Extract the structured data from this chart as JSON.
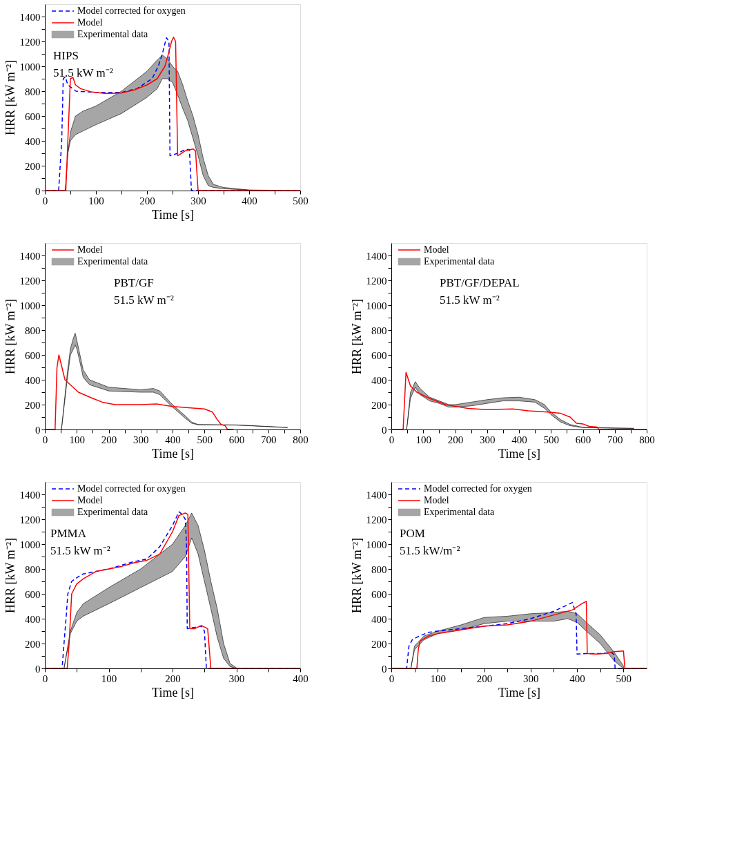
{
  "chart_data": [
    {
      "type": "line",
      "xlabel": "Time [s]",
      "ylabel": "HRR [kW m⁻²]",
      "annotations": [
        "HIPS",
        "51.5 kW m⁻²"
      ],
      "legend": "top left",
      "grid": false,
      "xlim": [
        0,
        500
      ],
      "xticks": [
        0,
        {
          "value": 50,
          "label": null
        },
        100,
        {
          "value": 150,
          "label": null
        },
        200,
        {
          "value": 250,
          "label": null
        },
        300,
        {
          "value": 350,
          "label": null
        },
        400,
        {
          "value": 450,
          "label": null
        },
        500
      ],
      "ylim": [
        0,
        1500
      ],
      "yticks": [
        0,
        {
          "value": 100,
          "label": null
        },
        200,
        {
          "value": 300,
          "label": null
        },
        400,
        {
          "value": 500,
          "label": null
        },
        600,
        {
          "value": 700,
          "label": null
        },
        800,
        {
          "value": 900,
          "label": null
        },
        1000,
        {
          "value": 1100,
          "label": null
        },
        1200,
        {
          "value": 1300,
          "label": null
        },
        1400
      ],
      "series": [
        {
          "name": "Model corrected for oxygen",
          "type": "line",
          "color": "#0000ff",
          "line_style": "dashed",
          "x": [
            0,
            27,
            33,
            36,
            40,
            45,
            61,
            100,
            150,
            180,
            210,
            222,
            230,
            238,
            243,
            245,
            260,
            275,
            283,
            287,
            500
          ],
          "values": [
            0,
            0,
            400,
            900,
            915,
            850,
            800,
            790,
            790,
            820,
            900,
            1000,
            1100,
            1230,
            1200,
            280,
            300,
            330,
            330,
            0,
            0
          ]
        },
        {
          "name": "Model",
          "type": "line",
          "color": "#ff0000",
          "line_style": "solid",
          "x": [
            0,
            41,
            50,
            55,
            60,
            70,
            90,
            120,
            150,
            175,
            200,
            220,
            235,
            242,
            248,
            252,
            256,
            260,
            275,
            290,
            295,
            300,
            500
          ],
          "values": [
            0,
            0,
            900,
            910,
            850,
            820,
            795,
            780,
            785,
            810,
            850,
            900,
            1000,
            1100,
            1200,
            1235,
            1200,
            280,
            320,
            335,
            320,
            0,
            0
          ]
        },
        {
          "name": "Experimental data",
          "values": [
            null,
            null,
            null,
            null,
            null,
            null,
            null,
            null,
            null,
            null,
            null,
            null,
            null,
            null,
            null,
            null,
            null,
            null,
            null,
            null,
            null,
            null,
            null
          ],
          "type": "area",
          "color": "#000000",
          "x": [
            40,
            45,
            50,
            60,
            75,
            100,
            150,
            200,
            220,
            230,
            240,
            250,
            260,
            270,
            280,
            290,
            300,
            310,
            320,
            330,
            350,
            400,
            460
          ],
          "lower": [
            0,
            300,
            400,
            450,
            480,
            530,
            620,
            750,
            820,
            900,
            900,
            870,
            770,
            660,
            560,
            420,
            280,
            120,
            40,
            25,
            15,
            3,
            0
          ],
          "upper": [
            0,
            300,
            470,
            600,
            640,
            680,
            800,
            960,
            1050,
            1090,
            1060,
            1000,
            960,
            850,
            720,
            600,
            450,
            260,
            120,
            50,
            25,
            5,
            2
          ]
        }
      ]
    },
    {
      "type": "line",
      "xlabel": "Time [s]",
      "ylabel": "HRR [kW m⁻²]",
      "annotations": [
        "PBT/GF",
        "51.5 kW m⁻²"
      ],
      "legend": "top left",
      "grid": false,
      "xlim": [
        0,
        800
      ],
      "xticks": [
        0,
        {
          "value": 50,
          "label": null
        },
        100,
        {
          "value": 150,
          "label": null
        },
        200,
        {
          "value": 250,
          "label": null
        },
        300,
        {
          "value": 350,
          "label": null
        },
        400,
        {
          "value": 450,
          "label": null
        },
        500,
        {
          "value": 550,
          "label": null
        },
        600,
        {
          "value": 650,
          "label": null
        },
        700,
        {
          "value": 750,
          "label": null
        },
        800
      ],
      "ylim": [
        0,
        1500
      ],
      "yticks": [
        0,
        {
          "value": 100,
          "label": null
        },
        200,
        {
          "value": 300,
          "label": null
        },
        400,
        {
          "value": 500,
          "label": null
        },
        600,
        {
          "value": 700,
          "label": null
        },
        800,
        {
          "value": 900,
          "label": null
        },
        1000,
        {
          "value": 1100,
          "label": null
        },
        1200,
        {
          "value": 1300,
          "label": null
        },
        1400
      ],
      "series": [
        {
          "name": "Model",
          "type": "line",
          "color": "#ff0000",
          "line_style": "solid",
          "x": [
            0,
            32,
            38,
            44,
            63,
            105,
            150,
            180,
            220,
            300,
            350,
            400,
            450,
            500,
            525,
            540,
            552,
            565,
            572,
            590
          ],
          "values": [
            0,
            0,
            500,
            600,
            400,
            300,
            250,
            220,
            200,
            200,
            205,
            185,
            175,
            165,
            140,
            80,
            40,
            30,
            0,
            0
          ]
        },
        {
          "name": "Experimental data",
          "values": [
            null,
            null,
            null,
            null,
            null,
            null,
            null,
            null,
            null,
            null,
            null,
            null,
            null,
            null,
            null,
            null,
            null,
            null,
            null
          ],
          "type": "area",
          "color": "#000000",
          "x": [
            52,
            70,
            80,
            90,
            95,
            100,
            110,
            120,
            140,
            200,
            300,
            340,
            360,
            400,
            440,
            460,
            480,
            600,
            760
          ],
          "lower": [
            0,
            400,
            600,
            650,
            680,
            650,
            540,
            420,
            360,
            310,
            300,
            300,
            280,
            180,
            90,
            50,
            38,
            35,
            15
          ],
          "upper": [
            0,
            450,
            650,
            740,
            775,
            720,
            600,
            480,
            400,
            340,
            320,
            330,
            310,
            200,
            110,
            60,
            40,
            37,
            17
          ]
        }
      ]
    },
    {
      "type": "line",
      "xlabel": "Time [s]",
      "ylabel": "HRR [kW m⁻²]",
      "annotations": [
        "PBT/GF/DEPAL",
        "51.5 kW m⁻²"
      ],
      "legend": "top left",
      "grid": false,
      "xlim": [
        0,
        800
      ],
      "xticks": [
        0,
        {
          "value": 50,
          "label": null
        },
        100,
        {
          "value": 150,
          "label": null
        },
        200,
        {
          "value": 250,
          "label": null
        },
        300,
        {
          "value": 350,
          "label": null
        },
        400,
        {
          "value": 450,
          "label": null
        },
        500,
        {
          "value": 550,
          "label": null
        },
        600,
        {
          "value": 650,
          "label": null
        },
        700,
        {
          "value": 750,
          "label": null
        },
        800
      ],
      "ylim": [
        0,
        1500
      ],
      "yticks": [
        0,
        {
          "value": 100,
          "label": null
        },
        200,
        {
          "value": 300,
          "label": null
        },
        400,
        {
          "value": 500,
          "label": null
        },
        600,
        {
          "value": 700,
          "label": null
        },
        800,
        {
          "value": 900,
          "label": null
        },
        1000,
        {
          "value": 1100,
          "label": null
        },
        1200,
        {
          "value": 1300,
          "label": null
        },
        1400
      ],
      "series": [
        {
          "name": "Model",
          "type": "line",
          "color": "#ff0000",
          "line_style": "solid",
          "x": [
            0,
            37,
            46,
            60,
            80,
            120,
            170,
            240,
            300,
            380,
            430,
            490,
            530,
            560,
            580,
            600,
            620,
            645,
            650,
            800
          ],
          "values": [
            0,
            0,
            460,
            350,
            300,
            250,
            200,
            170,
            160,
            165,
            150,
            140,
            130,
            100,
            50,
            45,
            25,
            20,
            0,
            0
          ]
        },
        {
          "name": "Experimental data",
          "values": [
            null,
            null,
            null,
            null,
            null,
            null,
            null,
            null,
            null,
            null,
            null,
            null,
            null,
            null,
            null,
            null,
            null,
            null,
            null,
            null
          ],
          "type": "area",
          "color": "#000000",
          "x": [
            48,
            60,
            75,
            90,
            120,
            150,
            180,
            200,
            250,
            300,
            350,
            400,
            450,
            480,
            500,
            530,
            560,
            600,
            700,
            760
          ],
          "lower": [
            0,
            250,
            340,
            280,
            230,
            210,
            180,
            180,
            190,
            210,
            230,
            230,
            220,
            170,
            120,
            60,
            30,
            15,
            10,
            8
          ],
          "upper": [
            0,
            300,
            385,
            330,
            260,
            230,
            200,
            200,
            220,
            240,
            255,
            260,
            240,
            200,
            140,
            80,
            40,
            18,
            12,
            10
          ]
        }
      ]
    },
    {
      "type": "line",
      "xlabel": "Time [s]",
      "ylabel": "HRR [kW m⁻²]",
      "annotations": [
        "PMMA",
        "51.5 kW m⁻²"
      ],
      "legend": "top left",
      "grid": false,
      "xlim": [
        0,
        400
      ],
      "xticks": [
        0,
        {
          "value": 50,
          "label": null
        },
        100,
        {
          "value": 150,
          "label": null
        },
        200,
        {
          "value": 250,
          "label": null
        },
        300,
        {
          "value": 350,
          "label": null
        },
        400
      ],
      "ylim": [
        0,
        1500
      ],
      "yticks": [
        0,
        {
          "value": 100,
          "label": null
        },
        200,
        {
          "value": 300,
          "label": null
        },
        400,
        {
          "value": 500,
          "label": null
        },
        600,
        {
          "value": 700,
          "label": null
        },
        800,
        {
          "value": 900,
          "label": null
        },
        1000,
        {
          "value": 1100,
          "label": null
        },
        1200,
        {
          "value": 1300,
          "label": null
        },
        1400
      ],
      "series": [
        {
          "name": "Model corrected for oxygen",
          "type": "line",
          "color": "#0000ff",
          "line_style": "dashed",
          "x": [
            0,
            27,
            30,
            33,
            36,
            42,
            50,
            60,
            80,
            100,
            120,
            140,
            160,
            180,
            200,
            210,
            215,
            220,
            222,
            223,
            235,
            245,
            250,
            253,
            400
          ],
          "values": [
            0,
            0,
            200,
            390,
            600,
            700,
            730,
            760,
            780,
            800,
            830,
            860,
            880,
            980,
            1150,
            1260,
            1240,
            1200,
            980,
            320,
            330,
            340,
            300,
            0,
            0
          ]
        },
        {
          "name": "Model",
          "type": "line",
          "color": "#ff0000",
          "line_style": "solid",
          "x": [
            0,
            35,
            38,
            42,
            50,
            60,
            80,
            100,
            120,
            140,
            160,
            180,
            200,
            210,
            220,
            224,
            227,
            235,
            245,
            255,
            260,
            400
          ],
          "values": [
            0,
            0,
            200,
            600,
            680,
            720,
            780,
            800,
            820,
            850,
            870,
            920,
            1100,
            1230,
            1250,
            1240,
            320,
            320,
            345,
            320,
            0,
            0
          ]
        },
        {
          "name": "Experimental data",
          "values": [
            null,
            null,
            null,
            null,
            null,
            null,
            null,
            null,
            null,
            null,
            null,
            null,
            null,
            null,
            null,
            null
          ],
          "type": "area",
          "color": "#000000",
          "x": [
            30,
            40,
            50,
            60,
            100,
            150,
            200,
            220,
            230,
            240,
            250,
            260,
            270,
            280,
            290,
            300
          ],
          "lower": [
            0,
            280,
            380,
            420,
            520,
            650,
            780,
            900,
            1050,
            920,
            700,
            480,
            250,
            80,
            15,
            0
          ],
          "upper": [
            0,
            300,
            450,
            520,
            650,
            800,
            1000,
            1150,
            1250,
            1150,
            950,
            700,
            480,
            200,
            40,
            5
          ]
        }
      ]
    },
    {
      "type": "line",
      "xlabel": "Time [s]",
      "ylabel": "HRR [kW m⁻²]",
      "annotations": [
        "POM",
        "51.5 kW/m⁻²"
      ],
      "legend": "top left",
      "grid": false,
      "xlim": [
        0,
        550
      ],
      "xticks": [
        0,
        {
          "value": 50,
          "label": null
        },
        100,
        {
          "value": 150,
          "label": null
        },
        200,
        {
          "value": 250,
          "label": null
        },
        300,
        {
          "value": 350,
          "label": null
        },
        400,
        {
          "value": 450,
          "label": null
        },
        500
      ],
      "ylim": [
        0,
        1500
      ],
      "yticks": [
        0,
        {
          "value": 100,
          "label": null
        },
        200,
        {
          "value": 300,
          "label": null
        },
        400,
        {
          "value": 500,
          "label": null
        },
        600,
        {
          "value": 700,
          "label": null
        },
        800,
        {
          "value": 900,
          "label": null
        },
        1000,
        {
          "value": 1100,
          "label": null
        },
        1200,
        {
          "value": 1300,
          "label": null
        },
        1400
      ],
      "series": [
        {
          "name": "Model corrected for oxygen",
          "type": "line",
          "color": "#0000ff",
          "line_style": "dashed",
          "x": [
            0,
            33,
            38,
            45,
            60,
            80,
            100,
            150,
            200,
            250,
            300,
            350,
            390,
            398,
            400,
            420,
            450,
            475,
            480,
            482,
            550
          ],
          "values": [
            0,
            0,
            180,
            230,
            260,
            290,
            300,
            320,
            340,
            360,
            400,
            460,
            530,
            440,
            115,
            120,
            120,
            125,
            110,
            0,
            0
          ]
        },
        {
          "name": "Model",
          "type": "line",
          "color": "#ff0000",
          "line_style": "solid",
          "x": [
            0,
            55,
            58,
            62,
            80,
            100,
            150,
            200,
            250,
            300,
            350,
            390,
            410,
            420,
            422,
            440,
            460,
            480,
            500,
            503,
            550
          ],
          "values": [
            0,
            0,
            150,
            220,
            260,
            280,
            310,
            340,
            350,
            380,
            430,
            470,
            520,
            540,
            120,
            115,
            120,
            135,
            140,
            0,
            0
          ]
        },
        {
          "name": "Experimental data",
          "values": [
            null,
            null,
            null,
            null,
            null,
            null,
            null,
            null,
            null,
            null,
            null,
            null,
            null,
            null,
            null
          ],
          "type": "area",
          "color": "#000000",
          "x": [
            42,
            50,
            70,
            100,
            150,
            200,
            250,
            300,
            350,
            380,
            400,
            420,
            450,
            480,
            500
          ],
          "lower": [
            0,
            150,
            230,
            280,
            310,
            360,
            380,
            380,
            380,
            400,
            370,
            300,
            200,
            60,
            0
          ],
          "upper": [
            0,
            180,
            260,
            300,
            350,
            410,
            420,
            440,
            450,
            460,
            440,
            370,
            270,
            130,
            20
          ]
        }
      ]
    }
  ]
}
